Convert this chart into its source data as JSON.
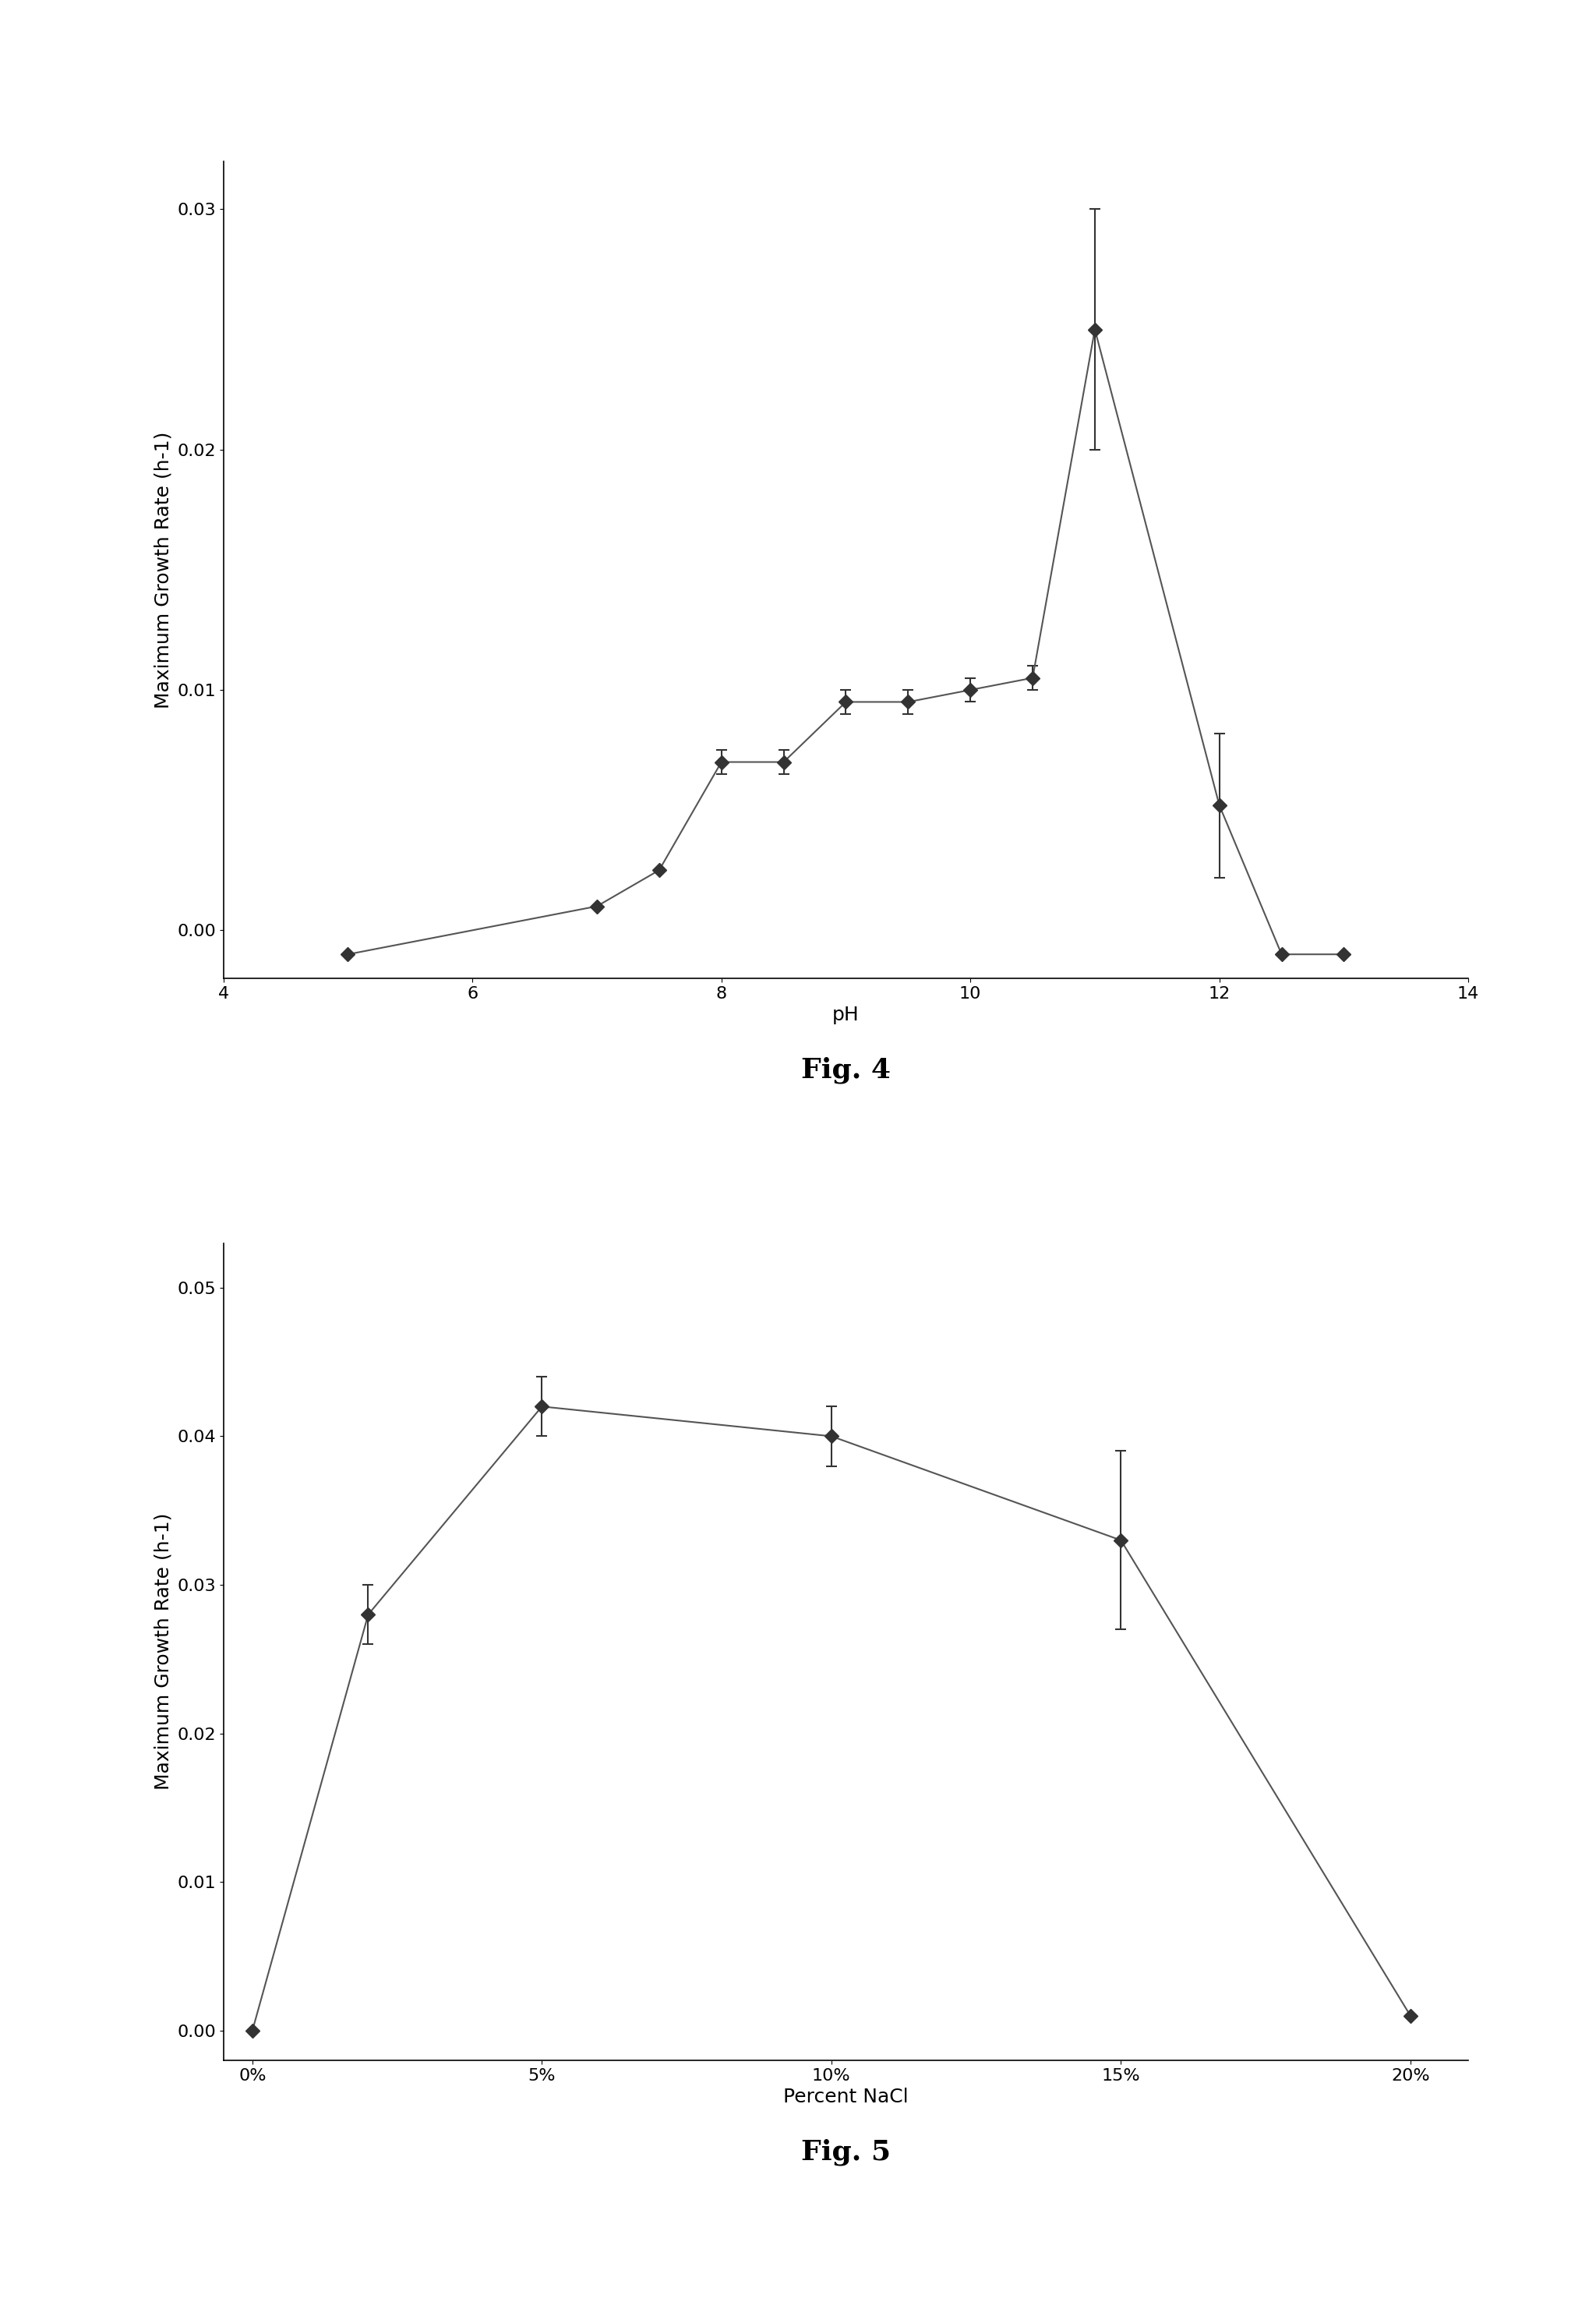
{
  "fig4": {
    "x": [
      5,
      7,
      7.5,
      8,
      8.5,
      9,
      9.5,
      10,
      10.5,
      11,
      12,
      12.5,
      13
    ],
    "y": [
      -0.001,
      0.001,
      0.0025,
      0.007,
      0.007,
      0.0095,
      0.0095,
      0.01,
      0.0105,
      0.025,
      0.0052,
      -0.001,
      -0.001
    ],
    "yerr": [
      0.0,
      0.0,
      0.0,
      0.0005,
      0.0005,
      0.0005,
      0.0005,
      0.0005,
      0.0005,
      0.005,
      0.003,
      0.0,
      0.0
    ],
    "xlabel": "pH",
    "ylabel": "Maximum Growth Rate (h-1)",
    "xlim": [
      4,
      14
    ],
    "ylim": [
      -0.002,
      0.032
    ],
    "xticks": [
      4,
      6,
      8,
      10,
      12,
      14
    ],
    "yticks": [
      0.0,
      0.01,
      0.02,
      0.03
    ],
    "caption": "Fig. 4"
  },
  "fig5": {
    "x": [
      0,
      2,
      5,
      10,
      15,
      20
    ],
    "y": [
      0.0,
      0.028,
      0.042,
      0.04,
      0.033,
      0.001
    ],
    "yerr": [
      0.0,
      0.002,
      0.002,
      0.002,
      0.006,
      0.0
    ],
    "xlabel": "Percent NaCl",
    "ylabel": "Maximum Growth Rate (h-1)",
    "xlim": [
      -0.5,
      21
    ],
    "ylim": [
      -0.002,
      0.053
    ],
    "xticks": [
      0,
      5,
      10,
      15,
      20
    ],
    "xticklabels": [
      "0%",
      "5%",
      "10%",
      "15%",
      "20%"
    ],
    "yticks": [
      0.0,
      0.01,
      0.02,
      0.03,
      0.04,
      0.05
    ],
    "caption": "Fig. 5"
  },
  "bg_color": "#ffffff",
  "line_color": "#555555",
  "marker_color": "#333333",
  "marker": "D",
  "markersize": 9,
  "linewidth": 1.5,
  "caption_fontsize": 26,
  "label_fontsize": 18,
  "tick_fontsize": 16
}
